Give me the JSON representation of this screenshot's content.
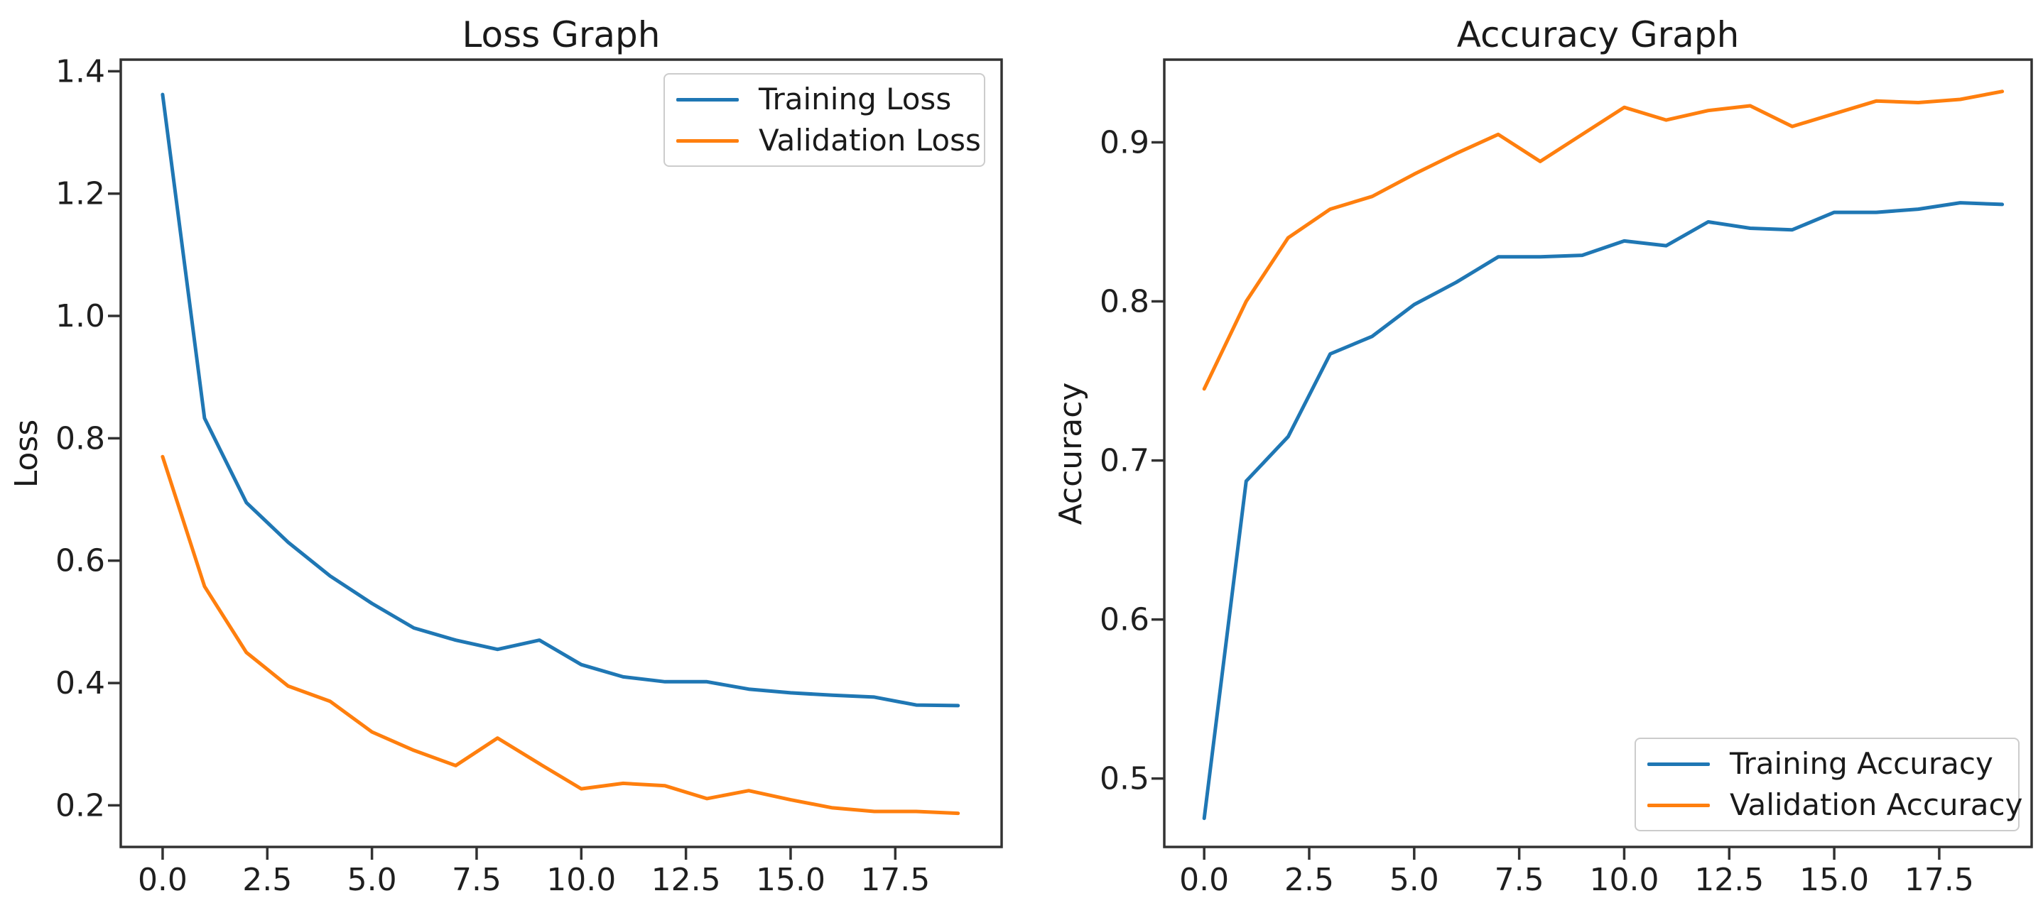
{
  "figure": {
    "background": "#ffffff"
  },
  "colors": {
    "training": "#1f77b4",
    "validation": "#ff7f0e",
    "axis": "#323232",
    "text": "#1f1f1f",
    "legend_border": "#cccccc"
  },
  "chart_data": [
    {
      "type": "line",
      "title": "Loss Graph",
      "xlabel": "",
      "ylabel": "Loss",
      "grid": false,
      "legend_position": "upper right",
      "x": [
        0,
        1,
        2,
        3,
        4,
        5,
        6,
        7,
        8,
        9,
        10,
        11,
        12,
        13,
        14,
        15,
        16,
        17,
        18,
        19
      ],
      "xlim": [
        -1.0,
        20.04
      ],
      "ylim": [
        0.132,
        1.419
      ],
      "xtick_values": [
        0.0,
        2.5,
        5.0,
        7.5,
        10.0,
        12.5,
        15.0,
        17.5
      ],
      "xtick_labels": [
        "0.0",
        "2.5",
        "5.0",
        "7.5",
        "10.0",
        "12.5",
        "15.0",
        "17.5"
      ],
      "ytick_values": [
        0.2,
        0.4,
        0.6,
        0.8,
        1.0,
        1.2,
        1.4
      ],
      "ytick_labels": [
        "0.2",
        "0.4",
        "0.6",
        "0.8",
        "1.0",
        "1.2",
        "1.4"
      ],
      "series": [
        {
          "name": "Training Loss",
          "color_key": "training",
          "values": [
            1.362,
            0.833,
            0.695,
            0.63,
            0.575,
            0.53,
            0.49,
            0.47,
            0.455,
            0.47,
            0.43,
            0.41,
            0.402,
            0.402,
            0.39,
            0.384,
            0.38,
            0.377,
            0.364,
            0.363
          ]
        },
        {
          "name": "Validation Loss",
          "color_key": "validation",
          "values": [
            0.77,
            0.558,
            0.45,
            0.395,
            0.37,
            0.32,
            0.29,
            0.265,
            0.31,
            0.268,
            0.227,
            0.236,
            0.232,
            0.211,
            0.224,
            0.209,
            0.196,
            0.19,
            0.19,
            0.187
          ]
        }
      ]
    },
    {
      "type": "line",
      "title": "Accuracy Graph",
      "xlabel": "",
      "ylabel": "Accuracy",
      "grid": false,
      "legend_position": "lower right",
      "x": [
        0,
        1,
        2,
        3,
        4,
        5,
        6,
        7,
        8,
        9,
        10,
        11,
        12,
        13,
        14,
        15,
        16,
        17,
        18,
        19
      ],
      "xlim": [
        -0.95,
        19.7
      ],
      "ylim": [
        0.457,
        0.952
      ],
      "xtick_values": [
        0.0,
        2.5,
        5.0,
        7.5,
        10.0,
        12.5,
        15.0,
        17.5
      ],
      "xtick_labels": [
        "0.0",
        "2.5",
        "5.0",
        "7.5",
        "10.0",
        "12.5",
        "15.0",
        "17.5"
      ],
      "ytick_values": [
        0.5,
        0.6,
        0.7,
        0.8,
        0.9
      ],
      "ytick_labels": [
        "0.5",
        "0.6",
        "0.7",
        "0.8",
        "0.9"
      ],
      "series": [
        {
          "name": "Training Accuracy",
          "color_key": "training",
          "values": [
            0.475,
            0.687,
            0.715,
            0.767,
            0.778,
            0.798,
            0.812,
            0.828,
            0.828,
            0.829,
            0.838,
            0.835,
            0.85,
            0.846,
            0.845,
            0.856,
            0.856,
            0.858,
            0.862,
            0.861
          ]
        },
        {
          "name": "Validation Accuracy",
          "color_key": "validation",
          "values": [
            0.745,
            0.8,
            0.84,
            0.858,
            0.866,
            0.88,
            0.893,
            0.905,
            0.888,
            0.905,
            0.922,
            0.914,
            0.92,
            0.923,
            0.91,
            0.918,
            0.926,
            0.925,
            0.927,
            0.932
          ]
        }
      ]
    }
  ]
}
